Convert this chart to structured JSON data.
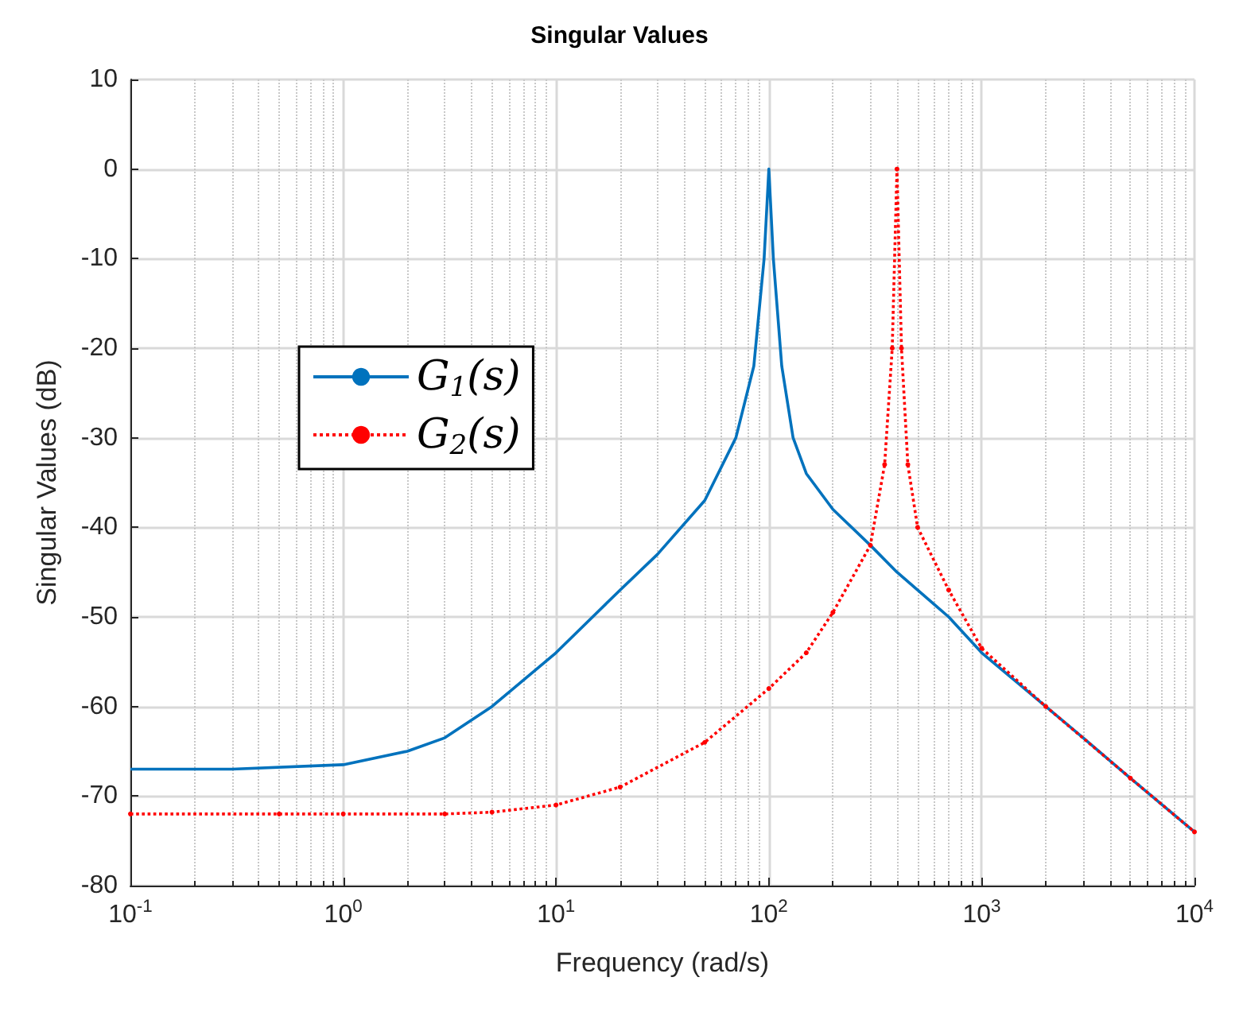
{
  "chart_data": {
    "type": "line",
    "title": "Singular Values",
    "xlabel": "Frequency (rad/s)",
    "ylabel": "Singular Values (dB)",
    "log": "x",
    "grid": true,
    "legend": "left",
    "xlim": [
      0.1,
      10000
    ],
    "xticks": [
      {
        "value": 0.1,
        "label": "10$^{-1}$"
      },
      {
        "value": 1,
        "label": "10$^{0}$"
      },
      {
        "value": 10,
        "label": "10$^{1}$"
      },
      {
        "value": 100,
        "label": "10$^{2}$"
      },
      {
        "value": 1000,
        "label": "10$^{3}$"
      },
      {
        "value": 10000,
        "label": "10$^{4}$"
      }
    ],
    "ylim": [
      -80,
      10
    ],
    "yticks": [
      -80,
      -70,
      -60,
      -50,
      -40,
      -30,
      -20,
      -10,
      0,
      10
    ],
    "series": [
      {
        "name": "G$_{1}$(s)",
        "color": "#0072bd",
        "marker": "none",
        "line_style": "solid",
        "x": [
          0.1,
          0.3,
          1,
          2,
          3,
          5,
          10,
          20,
          30,
          50,
          70,
          85,
          95,
          100,
          105,
          115,
          130,
          150,
          200,
          300,
          400,
          500,
          700,
          1000,
          2000,
          3000,
          5000,
          10000
        ],
        "values": [
          -67,
          -67,
          -66.5,
          -65,
          -63.5,
          -60,
          -54,
          -47,
          -43,
          -37,
          -30,
          -22,
          -10,
          0,
          -10,
          -22,
          -30,
          -34,
          -38,
          -42,
          -45,
          -47,
          -50,
          -54,
          -60,
          -63.5,
          -68,
          -74
        ]
      },
      {
        "name": "G$_{2}$(s)",
        "color": "#ff0000",
        "marker": "circle",
        "line_style": "dotted",
        "x": [
          0.1,
          0.5,
          1,
          3,
          5,
          10,
          20,
          50,
          100,
          150,
          200,
          300,
          350,
          380,
          400,
          420,
          450,
          500,
          700,
          1000,
          2000,
          5000,
          10000
        ],
        "values": [
          -72,
          -72,
          -72,
          -72,
          -71.8,
          -71,
          -69,
          -64,
          -58,
          -54,
          -49.5,
          -42,
          -33,
          -20,
          0,
          -20,
          -33,
          -40,
          -47,
          -53.5,
          -60,
          -68,
          -74
        ]
      }
    ]
  }
}
